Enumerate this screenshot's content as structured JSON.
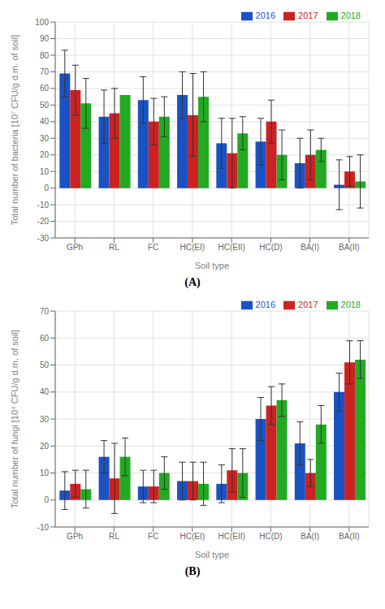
{
  "chart_data": [
    {
      "type": "bar",
      "categories": [
        "GPh",
        "RL",
        "FC",
        "HC(EI)",
        "HC(EII)",
        "HC(D)",
        "BA(I)",
        "BA(II)"
      ],
      "xlabel": "Soil type",
      "ylabel": "Total number of bacteria [10⁷ CFU/g d.m. of soil]",
      "annotation": "(A)",
      "series": [
        {
          "name": "2016",
          "color": "#1a52c4",
          "values": [
            69,
            43,
            53,
            56,
            27,
            28,
            15,
            2
          ],
          "errors": [
            14,
            16,
            14,
            14,
            15,
            14,
            15,
            15
          ]
        },
        {
          "name": "2017",
          "color": "#cc2222",
          "values": [
            59,
            45,
            40,
            44,
            21,
            40,
            20,
            10
          ],
          "errors": [
            15,
            15,
            14,
            25,
            21,
            13,
            15,
            9
          ]
        },
        {
          "name": "2018",
          "color": "#22aa22",
          "values": [
            51,
            56,
            43,
            55,
            33,
            20,
            23,
            4
          ],
          "errors": [
            15,
            0,
            12,
            15,
            10,
            15,
            7,
            16
          ]
        }
      ],
      "ylim": [
        -30,
        100
      ],
      "yticks": [
        -30,
        -20,
        -10,
        0,
        10,
        20,
        30,
        40,
        50,
        60,
        70,
        80,
        90,
        100
      ],
      "grid": true,
      "legend": "upper right"
    },
    {
      "type": "bar",
      "categories": [
        "GPh",
        "RL",
        "FC",
        "HC(EI)",
        "HC(EII)",
        "HC(D)",
        "BA(I)",
        "BA(II)"
      ],
      "xlabel": "Soil type",
      "ylabel": "Total number of fungi [10⁴ CFU/g d.m. of soil]",
      "annotation": "(B)",
      "series": [
        {
          "name": "2016",
          "color": "#1a52c4",
          "values": [
            3.5,
            16,
            5,
            7,
            6,
            30,
            21,
            40
          ],
          "errors": [
            7,
            6,
            6,
            7,
            7,
            8,
            8,
            7
          ]
        },
        {
          "name": "2017",
          "color": "#cc2222",
          "values": [
            6,
            8,
            5,
            7,
            11,
            35,
            10,
            51
          ],
          "errors": [
            5,
            13,
            6,
            7,
            8,
            7,
            5,
            8
          ]
        },
        {
          "name": "2018",
          "color": "#22aa22",
          "values": [
            4,
            16,
            10,
            6,
            10,
            37,
            28,
            52
          ],
          "errors": [
            7,
            7,
            6,
            8,
            9,
            6,
            7,
            7
          ]
        }
      ],
      "ylim": [
        -10,
        70
      ],
      "yticks": [
        -10,
        0,
        10,
        20,
        30,
        40,
        50,
        60,
        70
      ],
      "grid": true,
      "legend": "upper right"
    }
  ]
}
